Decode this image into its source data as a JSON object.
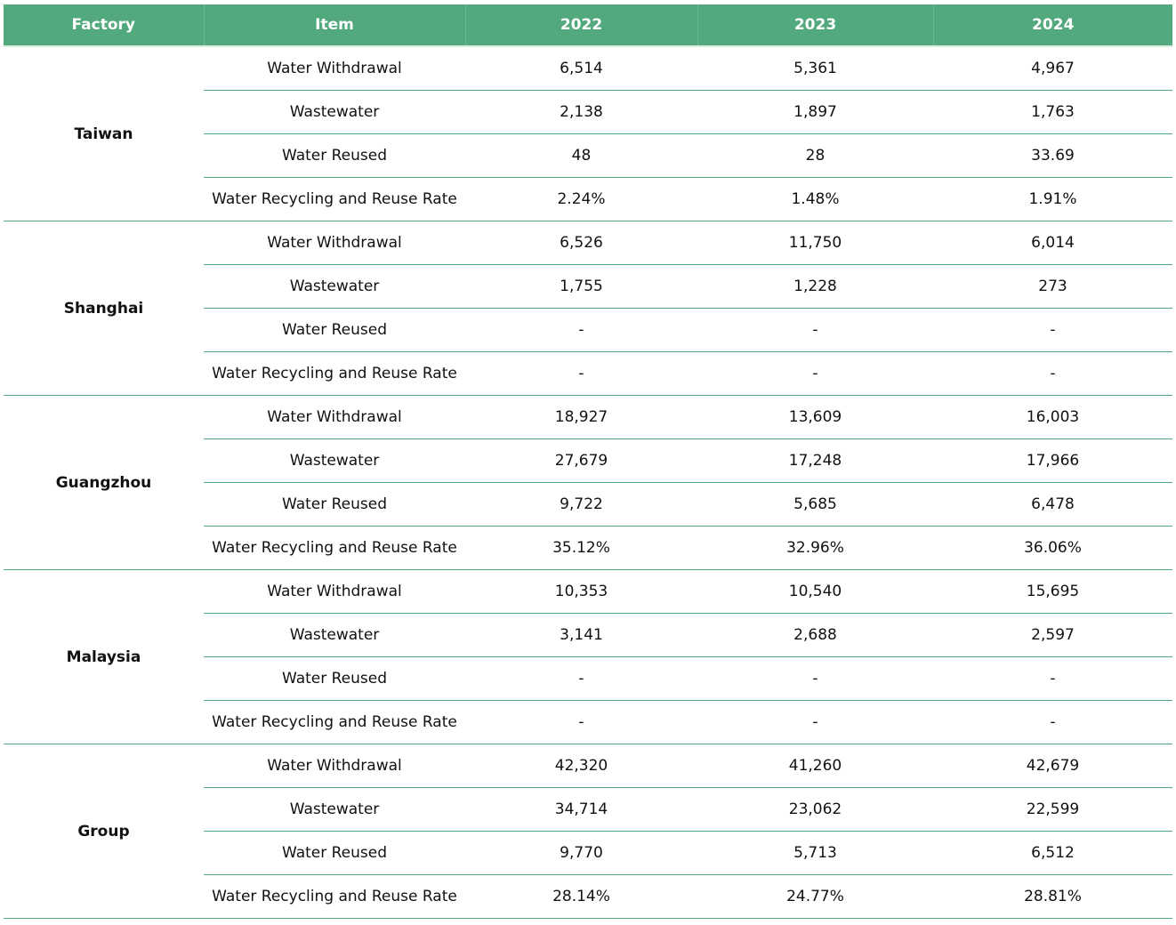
{
  "table": {
    "header": [
      "Factory",
      "Item",
      "2022",
      "2023",
      "2024"
    ],
    "groups": [
      {
        "factory": "Taiwan",
        "rows": [
          {
            "item": "Water Withdrawal",
            "values": [
              "6,514",
              "5,361",
              "4,967"
            ]
          },
          {
            "item": "Wastewater",
            "values": [
              "2,138",
              "1,897",
              "1,763"
            ]
          },
          {
            "item": "Water Reused",
            "values": [
              "48",
              "28",
              "33.69"
            ]
          },
          {
            "item": "Water Recycling and Reuse Rate",
            "values": [
              "2.24%",
              "1.48%",
              "1.91%"
            ]
          }
        ]
      },
      {
        "factory": "Shanghai",
        "rows": [
          {
            "item": "Water Withdrawal",
            "values": [
              "6,526",
              "11,750",
              "6,014"
            ]
          },
          {
            "item": "Wastewater",
            "values": [
              "1,755",
              "1,228",
              "273"
            ]
          },
          {
            "item": "Water Reused",
            "values": [
              "-",
              "-",
              "-"
            ]
          },
          {
            "item": "Water Recycling and Reuse Rate",
            "values": [
              "-",
              "-",
              "-"
            ]
          }
        ]
      },
      {
        "factory": "Guangzhou",
        "rows": [
          {
            "item": "Water Withdrawal",
            "values": [
              "18,927",
              "13,609",
              "16,003"
            ]
          },
          {
            "item": "Wastewater",
            "values": [
              "27,679",
              "17,248",
              "17,966"
            ]
          },
          {
            "item": "Water Reused",
            "values": [
              "9,722",
              "5,685",
              "6,478"
            ]
          },
          {
            "item": "Water Recycling and Reuse Rate",
            "values": [
              "35.12%",
              "32.96%",
              "36.06%"
            ]
          }
        ]
      },
      {
        "factory": "Malaysia",
        "rows": [
          {
            "item": "Water Withdrawal",
            "values": [
              "10,353",
              "10,540",
              "15,695"
            ]
          },
          {
            "item": "Wastewater",
            "values": [
              "3,141",
              "2,688",
              "2,597"
            ]
          },
          {
            "item": "Water Reused",
            "values": [
              "-",
              "-",
              "-"
            ]
          },
          {
            "item": "Water Recycling and Reuse Rate",
            "values": [
              "-",
              "-",
              "-"
            ]
          }
        ]
      },
      {
        "factory": "Group",
        "rows": [
          {
            "item": "Water Withdrawal",
            "values": [
              "42,320",
              "41,260",
              "42,679"
            ]
          },
          {
            "item": "Wastewater",
            "values": [
              "34,714",
              "23,062",
              "22,599"
            ]
          },
          {
            "item": "Water Reused",
            "values": [
              "9,770",
              "5,713",
              "6,512"
            ]
          },
          {
            "item": "Water Recycling and Reuse Rate",
            "values": [
              "28.14%",
              "24.77%",
              "28.81%"
            ]
          }
        ]
      }
    ]
  }
}
